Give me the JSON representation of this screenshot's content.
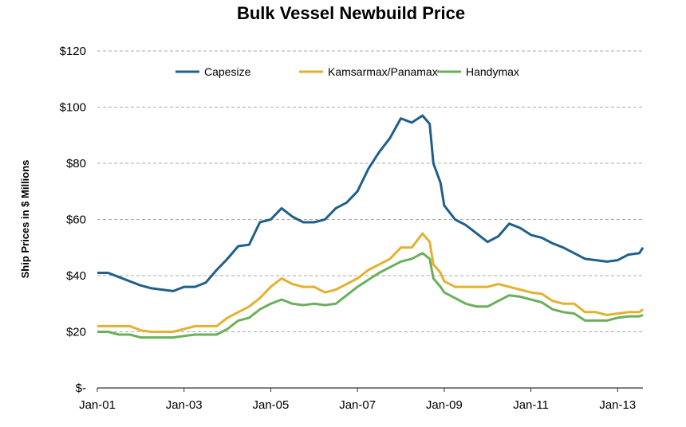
{
  "chart_data": {
    "type": "line",
    "title": "Bulk Vessel Newbuild Price",
    "xlabel": "",
    "ylabel": "Ship Prices in $ Millions",
    "ylim": [
      0,
      120
    ],
    "xlim": [
      "2001-01",
      "2013-08"
    ],
    "yticks": [
      0,
      20,
      40,
      60,
      80,
      100,
      120
    ],
    "ytick_labels": [
      "$-",
      "$20",
      "$40",
      "$60",
      "$80",
      "$100",
      "$120"
    ],
    "xtick_labels": [
      "Jan-01",
      "Jan-03",
      "Jan-05",
      "Jan-07",
      "Jan-09",
      "Jan-11",
      "Jan-13"
    ],
    "xtick_dates": [
      "2001-01",
      "2003-01",
      "2005-01",
      "2007-01",
      "2009-01",
      "2011-01",
      "2013-01"
    ],
    "grid": "horizontal dashed",
    "legend_position": "top",
    "x": [
      "2001-01",
      "2001-04",
      "2001-07",
      "2001-10",
      "2002-01",
      "2002-04",
      "2002-07",
      "2002-10",
      "2003-01",
      "2003-04",
      "2003-07",
      "2003-10",
      "2004-01",
      "2004-04",
      "2004-07",
      "2004-10",
      "2005-01",
      "2005-04",
      "2005-07",
      "2005-10",
      "2006-01",
      "2006-04",
      "2006-07",
      "2006-10",
      "2007-01",
      "2007-04",
      "2007-07",
      "2007-10",
      "2008-01",
      "2008-04",
      "2008-07",
      "2008-09",
      "2008-10",
      "2008-12",
      "2009-01",
      "2009-04",
      "2009-07",
      "2009-10",
      "2010-01",
      "2010-04",
      "2010-07",
      "2010-10",
      "2011-01",
      "2011-04",
      "2011-07",
      "2011-10",
      "2012-01",
      "2012-04",
      "2012-07",
      "2012-10",
      "2013-01",
      "2013-04",
      "2013-07",
      "2013-08"
    ],
    "series": [
      {
        "name": "Capesize",
        "color": "#1f5f8b",
        "values": [
          41,
          41,
          39.5,
          38,
          36.5,
          35.5,
          35,
          34.5,
          36,
          36,
          37.5,
          42,
          46,
          50.5,
          51,
          59,
          60,
          64,
          61,
          59,
          59,
          60,
          64,
          66,
          70,
          78,
          84,
          89,
          96,
          94.5,
          97,
          94,
          80,
          73,
          65,
          60,
          58,
          55,
          52,
          54,
          58.5,
          57,
          54.5,
          53.5,
          51.5,
          50,
          48,
          46,
          45.5,
          45,
          45.5,
          47.5,
          48,
          50
        ]
      },
      {
        "name": "Kamsarmax/Panamax",
        "color": "#e3b02f",
        "values": [
          22,
          22,
          22,
          22,
          20.5,
          20,
          20,
          20,
          21,
          22,
          22,
          22,
          25,
          27,
          29,
          32,
          36,
          39,
          37,
          36,
          36,
          34,
          35,
          37,
          39,
          42,
          44,
          46,
          50,
          50,
          55,
          52,
          44,
          41,
          38,
          36,
          36,
          36,
          36,
          37,
          36,
          35,
          34,
          33.5,
          31,
          30,
          30,
          27,
          27,
          26,
          26.5,
          27,
          27,
          28
        ]
      },
      {
        "name": "Handymax",
        "color": "#6ab05a",
        "values": [
          20,
          20,
          19,
          19,
          18,
          18,
          18,
          18,
          18.5,
          19,
          19,
          19,
          21,
          24,
          25,
          28,
          30,
          31.5,
          30,
          29.5,
          30,
          29.5,
          30,
          33,
          36,
          38.5,
          41,
          43,
          45,
          46,
          48,
          46,
          39,
          36,
          34,
          32,
          30,
          29,
          29,
          31,
          33,
          32.5,
          31.5,
          30.5,
          28,
          27,
          26.5,
          24,
          24,
          24,
          25,
          25.5,
          25.5,
          26
        ]
      }
    ]
  }
}
